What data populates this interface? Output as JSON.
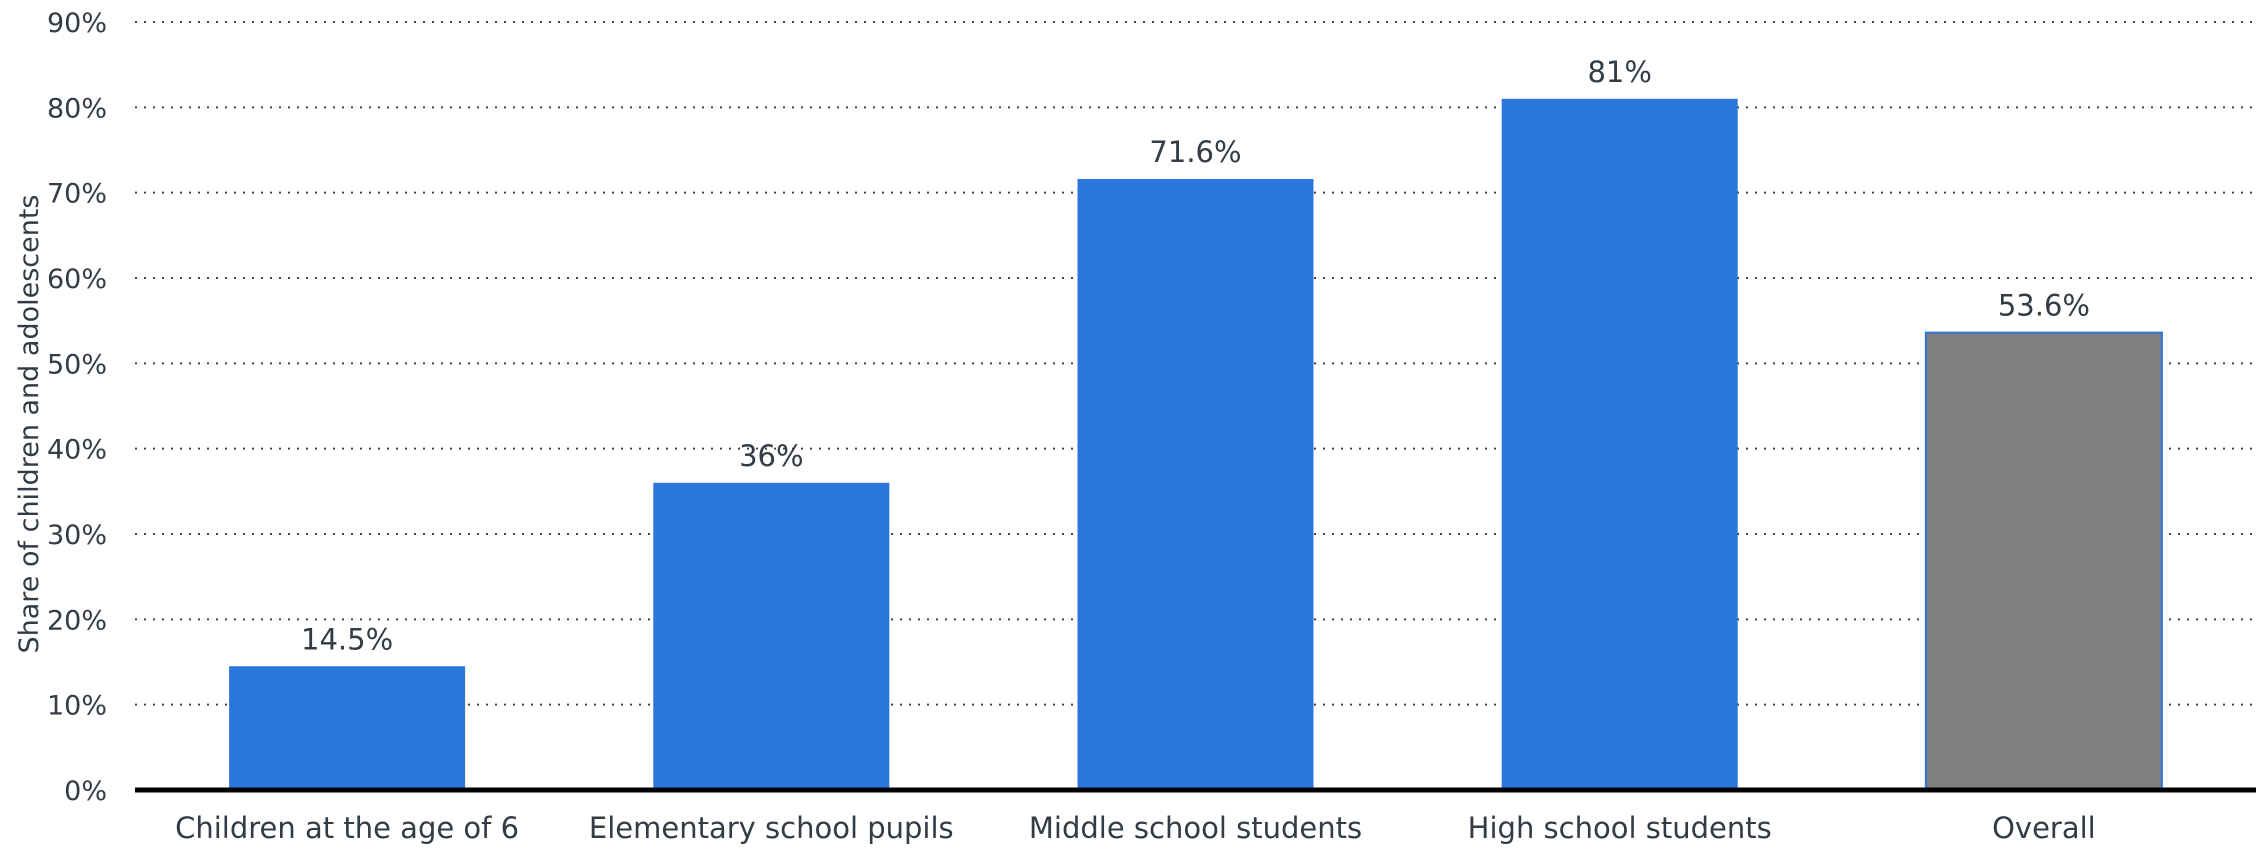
{
  "chart_data": {
    "type": "bar",
    "categories": [
      "Children at the age of 6",
      "Elementary school pupils",
      "Middle school students",
      "High school students",
      "Overall"
    ],
    "values": [
      14.5,
      36,
      71.6,
      81,
      53.6
    ],
    "data_labels": [
      "14.5%",
      "36%",
      "71.6%",
      "81%",
      "53.6%"
    ],
    "title": "",
    "xlabel": "",
    "ylabel": "Share of children and adolescents",
    "ylim": [
      0,
      90
    ],
    "y_ticks": [
      0,
      10,
      20,
      30,
      40,
      50,
      60,
      70,
      80,
      90
    ],
    "y_tick_labels": [
      "0%",
      "10%",
      "20%",
      "30%",
      "40%",
      "50%",
      "60%",
      "70%",
      "80%",
      "90%"
    ],
    "grid": true,
    "bar_colors": [
      "#2a76dd",
      "#2a76dd",
      "#2a76dd",
      "#2a76dd",
      "#7f7f7f"
    ]
  }
}
